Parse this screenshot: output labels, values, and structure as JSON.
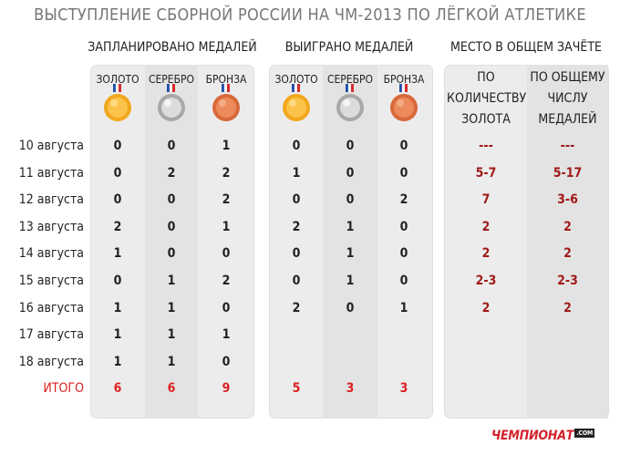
{
  "title": "ВЫСТУПЛЕНИЕ СБОРНОЙ РОССИИ НА ЧМ-2013 ПО ЛЁГКОЙ АТЛЕТИКЕ",
  "groups": {
    "planned": "ЗАПЛАНИРОВАНО МЕДАЛЕЙ",
    "won": "ВЫИГРАНО МЕДАЛЕЙ",
    "place": "МЕСТО В ОБЩЕМ ЗАЧЁТЕ"
  },
  "medal_cols": {
    "gold": "ЗОЛОТО",
    "silver": "СЕРЕБРО",
    "bronze": "БРОНЗА"
  },
  "rank_cols": {
    "by_gold": [
      "ПО",
      "КОЛИЧЕСТВУ",
      "ЗОЛОТА"
    ],
    "by_total": [
      "ПО ОБЩЕМУ",
      "ЧИСЛУ",
      "МЕДАЛЕЙ"
    ]
  },
  "rows": [
    {
      "date": "10 августа",
      "planned": [
        "0",
        "0",
        "1"
      ],
      "won": [
        "0",
        "0",
        "0"
      ],
      "place": [
        "---",
        "---"
      ]
    },
    {
      "date": "11 августа",
      "planned": [
        "0",
        "2",
        "2"
      ],
      "won": [
        "1",
        "0",
        "0"
      ],
      "place": [
        "5-7",
        "5-17"
      ]
    },
    {
      "date": "12 августа",
      "planned": [
        "0",
        "0",
        "2"
      ],
      "won": [
        "0",
        "0",
        "2"
      ],
      "place": [
        "7",
        "3-6"
      ]
    },
    {
      "date": "13 августа",
      "planned": [
        "2",
        "0",
        "1"
      ],
      "won": [
        "2",
        "1",
        "0"
      ],
      "place": [
        "2",
        "2"
      ]
    },
    {
      "date": "14 августа",
      "planned": [
        "1",
        "0",
        "0"
      ],
      "won": [
        "0",
        "1",
        "0"
      ],
      "place": [
        "2",
        "2"
      ]
    },
    {
      "date": "15 августа",
      "planned": [
        "0",
        "1",
        "2"
      ],
      "won": [
        "0",
        "1",
        "0"
      ],
      "place": [
        "2-3",
        "2-3"
      ]
    },
    {
      "date": "16 августа",
      "planned": [
        "1",
        "1",
        "0"
      ],
      "won": [
        "2",
        "0",
        "1"
      ],
      "place": [
        "2",
        "2"
      ]
    },
    {
      "date": "17 августа",
      "planned": [
        "1",
        "1",
        "1"
      ],
      "won": [],
      "place": []
    },
    {
      "date": "18 августа",
      "planned": [
        "1",
        "1",
        "0"
      ],
      "won": [],
      "place": []
    }
  ],
  "totals": {
    "label": "ИТОГО",
    "planned": [
      "6",
      "6",
      "9"
    ],
    "won": [
      "5",
      "3",
      "3"
    ]
  },
  "logo": {
    "text": "ЧЕМПИОНАТ",
    "suffix": ".COM"
  },
  "colors": {
    "gold": "#f2a81d",
    "silver": "#bdbdbd",
    "bronze": "#d9693a",
    "rank_red": "#a01a1a",
    "total_red": "#dd2222",
    "brand_red": "#d4202c"
  }
}
